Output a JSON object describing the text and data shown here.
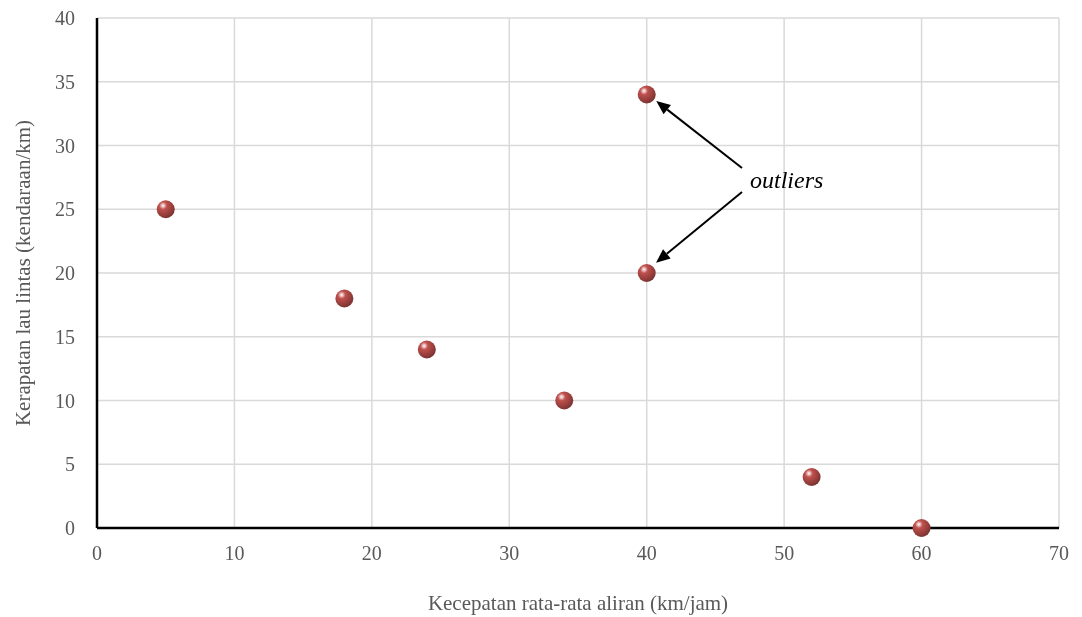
{
  "chart_data": {
    "type": "scatter",
    "xlabel": "Kecepatan rata-rata aliran (km/jam)",
    "ylabel": "Kerapatan lau lintas (kendaraan/km)",
    "x": [
      5,
      18,
      24,
      34,
      40,
      40,
      52,
      60
    ],
    "series": [
      {
        "color": "#c0504d",
        "values": [
          25,
          18,
          14,
          10,
          34,
          20,
          4,
          0
        ]
      }
    ],
    "xlim": [
      0,
      70
    ],
    "xticks": [
      0,
      10,
      20,
      30,
      40,
      50,
      60,
      70
    ],
    "ylim": [
      0,
      40
    ],
    "yticks": [
      0,
      5,
      10,
      15,
      20,
      25,
      30,
      35,
      40
    ],
    "grid": true,
    "marker": "circle",
    "annotations": [
      "outliers"
    ]
  }
}
